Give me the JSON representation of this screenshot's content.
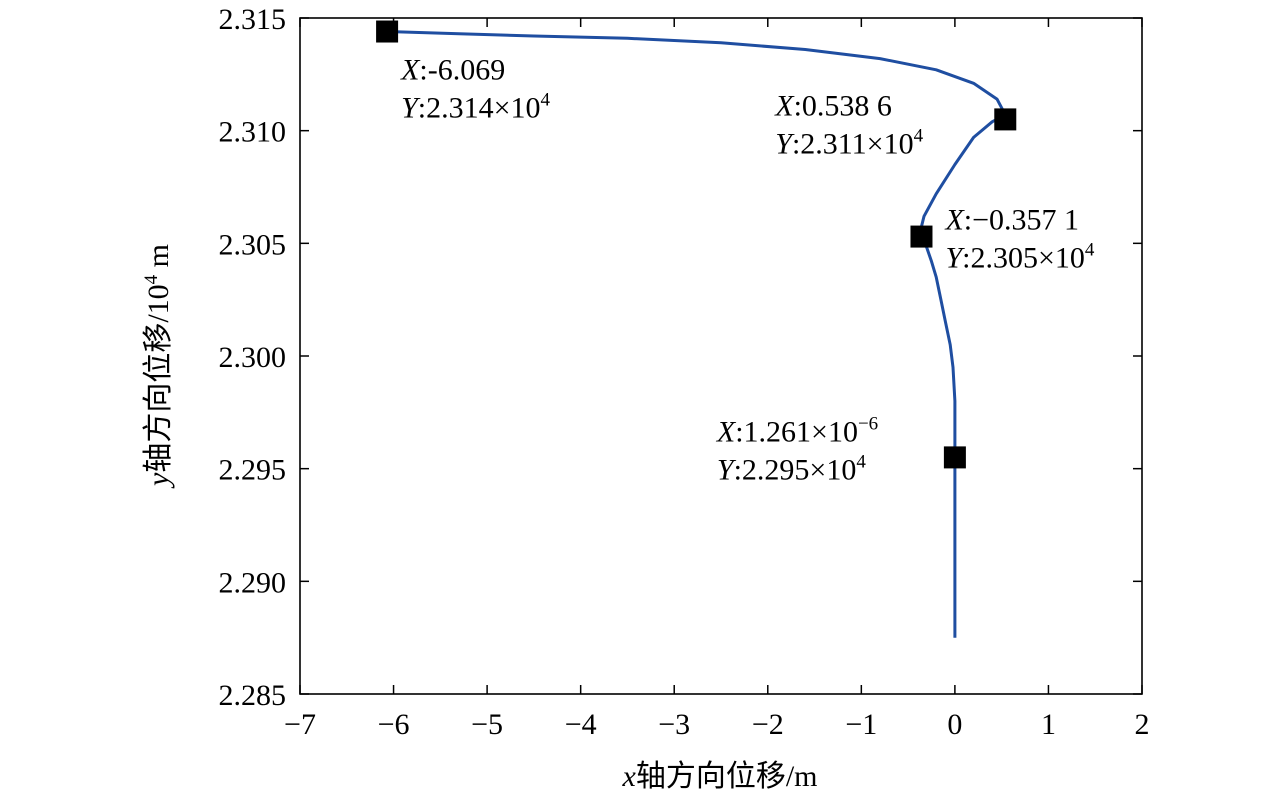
{
  "chart_data": {
    "type": "line",
    "xlabel": {
      "var": "x",
      "text": "轴方向位移/m"
    },
    "ylabel": {
      "var": "y",
      "text": "轴方向位移/10",
      "exp": "4",
      "unit": " m"
    },
    "xlim": [
      -7,
      2
    ],
    "ylim": [
      2.285,
      2.315
    ],
    "xticks": [
      -7,
      -6,
      -5,
      -4,
      -3,
      -2,
      -1,
      0,
      1,
      2
    ],
    "xtick_labels": [
      "−7",
      "−6",
      "−5",
      "−4",
      "−3",
      "−2",
      "−1",
      "0",
      "1",
      "2"
    ],
    "yticks": [
      2.285,
      2.29,
      2.295,
      2.3,
      2.305,
      2.31,
      2.315
    ],
    "ytick_labels": [
      "2.285",
      "2.290",
      "2.295",
      "2.300",
      "2.305",
      "2.310",
      "2.315"
    ],
    "series_color": "#1f4ea1",
    "series": [
      {
        "x": [
          0,
          0,
          0,
          0,
          0,
          -0.02,
          -0.05,
          -0.1,
          -0.15,
          -0.2,
          -0.25,
          -0.3,
          -0.33,
          -0.36,
          -0.36,
          -0.33,
          -0.2,
          0,
          0.2,
          0.4,
          0.54,
          0.45,
          0.2,
          -0.2,
          -0.8,
          -1.6,
          -2.5,
          -3.5,
          -4.5,
          -5.3,
          -6.069
        ],
        "y": [
          2.2875,
          2.29,
          2.2955,
          2.2975,
          2.298,
          2.2995,
          2.3005,
          2.3015,
          2.3025,
          2.3035,
          2.3042,
          2.3048,
          2.3052,
          2.3054,
          2.3057,
          2.3062,
          2.3072,
          2.3085,
          2.3097,
          2.3104,
          2.3107,
          2.3114,
          2.3121,
          2.3127,
          2.3132,
          2.3136,
          2.3139,
          2.3141,
          2.3142,
          2.3143,
          2.3144
        ]
      }
    ],
    "markers": [
      {
        "x": -6.069,
        "y": 2.3144,
        "label_x": "-6.069",
        "label_y": "2.314",
        "label_y_exp": "4"
      },
      {
        "x": 0.5386,
        "y": 2.3105,
        "label_x": "0.538 6",
        "label_y": "2.311",
        "label_y_exp": "4"
      },
      {
        "x": -0.3571,
        "y": 2.3053,
        "label_x": "−0.357 1",
        "label_y": "2.305",
        "label_y_exp": "4"
      },
      {
        "x": 0.0,
        "y": 2.2955,
        "label_x": "1.261",
        "label_x_exp": "−6",
        "label_y": "2.295",
        "label_y_exp": "4"
      }
    ],
    "annotation_common": {
      "x_prefix": "X",
      "y_prefix": "Y",
      "sep": ":",
      "times": "×10"
    }
  }
}
